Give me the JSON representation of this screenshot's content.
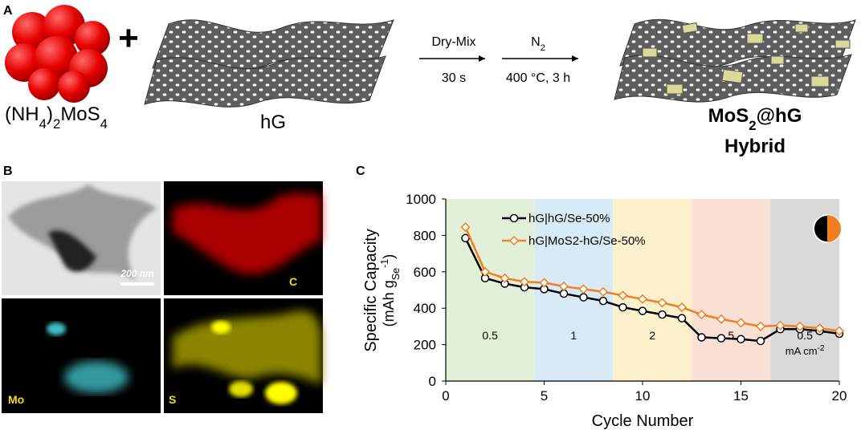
{
  "panel_a": {
    "label": "A",
    "precursor": [
      "(NH",
      "4",
      ")",
      "2",
      "MoS",
      "4"
    ],
    "plus": "+",
    "graphene": "hG",
    "step1": {
      "top": "Dry-Mix",
      "bottom": "30 s"
    },
    "step2": {
      "top": [
        "N",
        "2"
      ],
      "bottom": "400 °C, 3 h"
    },
    "product": [
      "MoS",
      "2",
      "@hG"
    ],
    "product_line2": "Hybrid"
  },
  "panel_b": {
    "label": "B",
    "scale_bar": "200 nm",
    "maps": [
      "C",
      "Mo",
      "S"
    ]
  },
  "chart_data": {
    "type": "line",
    "panel_label": "C",
    "x": [
      1,
      2,
      3,
      4,
      5,
      6,
      7,
      8,
      9,
      10,
      11,
      12,
      13,
      14,
      15,
      16,
      17,
      18,
      19,
      20
    ],
    "series": [
      {
        "name": "hG|hG/Se-50%",
        "color": "#000000",
        "marker": "circle",
        "values": [
          785,
          565,
          535,
          515,
          505,
          480,
          460,
          440,
          405,
          385,
          365,
          345,
          240,
          235,
          230,
          220,
          285,
          285,
          275,
          260
        ]
      },
      {
        "name": "hG|MoS2-hG/Se-50%",
        "color": "#f07f22",
        "marker": "diamond",
        "values": [
          845,
          600,
          565,
          545,
          540,
          520,
          505,
          490,
          470,
          450,
          430,
          405,
          365,
          340,
          320,
          300,
          305,
          300,
          290,
          275
        ]
      }
    ],
    "regions": [
      {
        "from": 0,
        "to": 4.5,
        "color": "#e2f0d9",
        "label": "0.5"
      },
      {
        "from": 4.5,
        "to": 8.5,
        "color": "#d9eaf7",
        "label": "1"
      },
      {
        "from": 8.5,
        "to": 12.5,
        "color": "#fdf0cc",
        "label": "2"
      },
      {
        "from": 12.5,
        "to": 16.5,
        "color": "#fbe1d5",
        "label": "5"
      },
      {
        "from": 16.5,
        "to": 20,
        "color": "#d9d9d9",
        "label": "0.5"
      }
    ],
    "rate_unit": [
      "mA cm",
      "-2"
    ],
    "xlim": [
      0,
      20
    ],
    "xticks": [
      0,
      5,
      10,
      15,
      20
    ],
    "ylim": [
      0,
      1000
    ],
    "yticks": [
      0,
      200,
      400,
      600,
      800,
      1000
    ],
    "xlabel": "Cycle Number",
    "ylabel": "Specific Capacity",
    "ylabel_unit": [
      "(mAh g",
      "Se",
      "-1",
      ")"
    ]
  }
}
